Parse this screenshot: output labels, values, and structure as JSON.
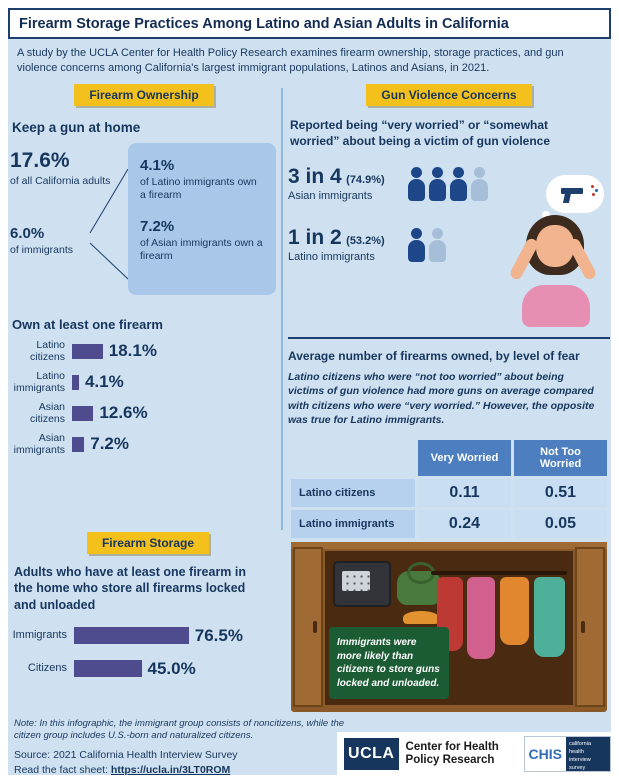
{
  "header": {
    "title": "Firearm Storage Practices Among Latino and Asian Adults in California",
    "subtitle": "A study by the UCLA Center for Health Policy Research examines firearm ownership, storage practices, and gun violence concerns among California's largest immigrant populations, Latinos and Asians, in 2021."
  },
  "sections": {
    "ownership_badge": "Firearm Ownership",
    "concerns_badge": "Gun Violence Concerns",
    "storage_badge": "Firearm Storage"
  },
  "ownership": {
    "keep_heading": "Keep a gun at home",
    "stats": [
      {
        "value": "17.6%",
        "label": "of all California adults"
      },
      {
        "value": "6.0%",
        "label": "of immigrants"
      },
      {
        "value": "4.1%",
        "label": "of Latino immigrants own a firearm"
      },
      {
        "value": "7.2%",
        "label": "of Asian immigrants own a firearm"
      }
    ],
    "own_heading": "Own at least one firearm"
  },
  "concerns": {
    "heading": "Reported being “very worried” or “somewhat worried” about being a victim of gun violence",
    "avg_heading": "Average number of firearms owned, by level of fear",
    "avg_note": "Latino citizens who were “not too worried” about being victims of gun violence had more guns on average compared with citizens who were “very worried.” However, the opposite was true for Latino immigrants."
  },
  "storage": {
    "heading": "Adults who have at least one firearm in the home who store all firearms locked and unloaded",
    "callout": "Immigrants were more likely than citizens to store guns locked and unloaded."
  },
  "footer": {
    "note": "Note: In this infographic, the immigrant group consists of noncitizens, while the citizen group includes U.S.-born and naturalized citizens.",
    "source": "Source: 2021 California Health Interview Survey",
    "fact_label": "Read the fact sheet: ",
    "fact_url": "https://ucla.in/3LT0ROM",
    "ucla": "UCLA",
    "center": "Center for Health Policy Research",
    "chis": "CHIS",
    "chis_sub": "california health interview survey"
  },
  "colors": {
    "navy": "#17365d",
    "yellow": "#f3c01c",
    "light_blue_bg": "#cfe1f1",
    "box_blue": "#a9c8e9",
    "bar_purple": "#4f4b8f",
    "table_header_blue": "#4d7fc0",
    "callout_green": "#1c5c34"
  },
  "chart_data": [
    {
      "type": "bar",
      "title": "Own at least one firearm",
      "categories": [
        "Latino citizens",
        "Latino immigrants",
        "Asian citizens",
        "Asian immigrants"
      ],
      "values": [
        18.1,
        4.1,
        12.6,
        7.2
      ],
      "display": [
        "18.1%",
        "4.1%",
        "12.6%",
        "7.2%"
      ],
      "unit": "percent"
    },
    {
      "type": "bar",
      "title": "Adults who have at least one firearm in the home who store all firearms locked and unloaded",
      "categories": [
        "Immigrants",
        "Citizens"
      ],
      "values": [
        76.5,
        45.0
      ],
      "display": [
        "76.5%",
        "45.0%"
      ],
      "unit": "percent"
    },
    {
      "type": "table",
      "title": "Average number of firearms owned, by level of fear",
      "columns": [
        "Very Worried",
        "Not Too Worried"
      ],
      "rows": [
        {
          "label": "Latino citizens",
          "values": [
            0.11,
            0.51
          ],
          "display": [
            "0.11",
            "0.51"
          ]
        },
        {
          "label": "Latino immigrants",
          "values": [
            0.24,
            0.05
          ],
          "display": [
            "0.24",
            "0.05"
          ]
        }
      ]
    },
    {
      "type": "pictogram",
      "title": "Reported being “very worried” or “somewhat worried” about being a victim of gun violence",
      "groups": [
        {
          "label": "Asian immigrants",
          "ratio": "3 in 4",
          "percent": 74.9,
          "percent_display": "(74.9%)",
          "filled": 3,
          "total": 4
        },
        {
          "label": "Latino immigrants",
          "ratio": "1 in 2",
          "percent": 53.2,
          "percent_display": "(53.2%)",
          "filled": 1,
          "total": 2
        }
      ]
    }
  ]
}
